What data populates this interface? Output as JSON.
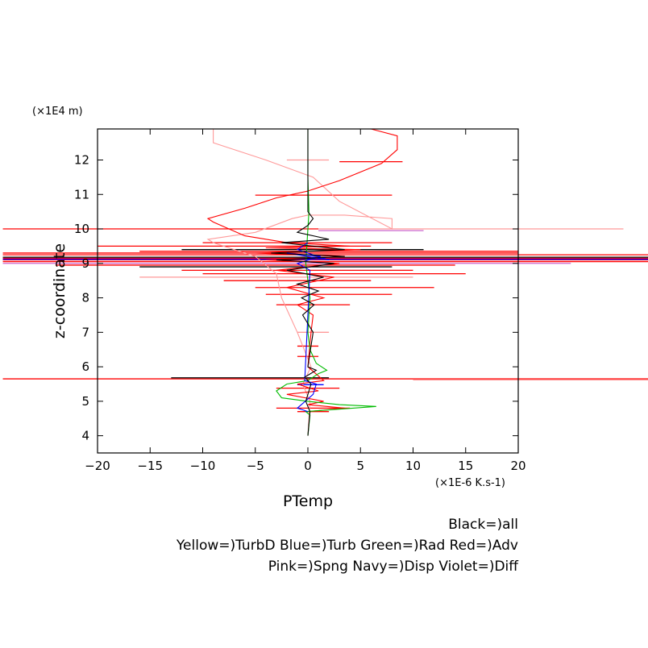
{
  "chart_data": {
    "type": "line",
    "xlabel": "PTemp",
    "ylabel": "z-coordinate",
    "x_unit": "(×1E-6 K.s-1)",
    "y_unit": "(×1E4 m)",
    "xlim": [
      -20,
      20
    ],
    "ylim": [
      3.5,
      12.9
    ],
    "x_ticks": [
      -20,
      -15,
      -10,
      -5,
      0,
      5,
      10,
      15,
      20
    ],
    "y_ticks": [
      4,
      5,
      6,
      7,
      8,
      9,
      10,
      11,
      12
    ],
    "grid": false,
    "legend_lines": [
      "Black=)all",
      "Yellow=)TurbD Blue=)Turb Green=)Rad Red=)Adv",
      "Pink=)Spng Navy=)Disp Violet=)Diff"
    ],
    "series": [
      {
        "color": "#ff9999",
        "x": [
          0,
          0.2,
          -0.5,
          0.3,
          -1.0,
          -2.5,
          -3.0,
          -5.0,
          -9.0,
          -9.5,
          -5.0,
          -1.5,
          0.0,
          3.5,
          8.0,
          8.0,
          3.0,
          0.5,
          -4.0,
          -9.0,
          -9.0,
          0.0
        ],
        "y": [
          4.0,
          5.0,
          5.5,
          6.0,
          7.0,
          8.0,
          8.7,
          9.2,
          9.6,
          9.7,
          9.9,
          10.3,
          10.4,
          10.4,
          10.3,
          10.0,
          10.8,
          11.5,
          12.0,
          12.5,
          12.9,
          12.9
        ]
      },
      {
        "color": "#ff0000",
        "x": [
          0,
          3.5,
          0,
          1.5,
          -2.0,
          1.0,
          -1.0,
          1.5,
          0,
          0.3,
          0.5,
          -1.0,
          1.5,
          -2.0,
          2.5,
          -3.0,
          3.0,
          -4.0,
          3.5,
          -5.0,
          5.0,
          -4.0,
          4.0,
          -2.0,
          -6.0,
          -9.0,
          -9.5,
          -6.0,
          -3.0,
          0.0,
          3.0,
          7.0,
          8.5,
          8.5,
          8.5,
          6.0,
          0.0
        ],
        "y": [
          4.7,
          4.8,
          4.9,
          5.0,
          5.2,
          5.3,
          5.5,
          5.6,
          6.0,
          7.0,
          7.5,
          7.8,
          8.0,
          8.3,
          8.6,
          8.8,
          9.0,
          9.1,
          9.2,
          9.3,
          9.4,
          9.45,
          9.5,
          9.6,
          9.8,
          10.2,
          10.3,
          10.6,
          10.9,
          11.1,
          11.4,
          11.9,
          12.3,
          12.5,
          12.7,
          12.9,
          12.9
        ]
      },
      {
        "color": "#00bb00",
        "x": [
          0,
          0.2,
          -0.2,
          6.5,
          3.0,
          0.0,
          -2.5,
          -3.0,
          -2.0,
          0.0,
          1.0,
          1.8,
          0.8,
          0.2,
          0.0,
          0.2,
          -0.2,
          0.1,
          0.0,
          0.0
        ],
        "y": [
          4.0,
          4.6,
          4.7,
          4.85,
          4.9,
          5.0,
          5.1,
          5.3,
          5.5,
          5.6,
          5.8,
          5.9,
          6.1,
          6.5,
          7.0,
          8.0,
          9.0,
          10.5,
          11.5,
          12.9
        ]
      },
      {
        "color": "#0000ff",
        "x": [
          0,
          -0.5,
          -1.0,
          0.5,
          0.8,
          -0.3,
          0.2,
          -1.0,
          1.2,
          -2.0,
          2.0,
          -1.0,
          0.0
        ],
        "y": [
          4.7,
          4.75,
          4.8,
          5.2,
          5.5,
          5.6,
          8.8,
          9.0,
          9.2,
          9.3,
          9.1,
          9.4,
          9.6
        ]
      },
      {
        "color": "#000000",
        "x": [
          0,
          0.2,
          -0.2,
          0.3,
          -0.3,
          0.8,
          0.0,
          0.5,
          -0.5,
          0.6,
          -0.6,
          1.0,
          -1.0,
          1.5,
          -2.0,
          2.5,
          -3.0,
          3.5,
          -3.5,
          3.5,
          -2.5,
          2.0,
          -1.0,
          0.0,
          0.5,
          0.0,
          0.0
        ],
        "y": [
          4.0,
          4.7,
          5.0,
          5.5,
          5.7,
          5.9,
          6.0,
          7.0,
          7.5,
          7.8,
          8.0,
          8.2,
          8.4,
          8.6,
          8.8,
          9.0,
          9.1,
          9.2,
          9.3,
          9.4,
          9.6,
          9.7,
          9.9,
          10.1,
          10.3,
          10.5,
          12.9
        ]
      }
    ],
    "spikes": [
      {
        "color": "#ff0000",
        "y": 10.0,
        "x1": -29,
        "x2": 1
      },
      {
        "color": "#ff0000",
        "y": 5.65,
        "x1": -29,
        "x2": 41
      },
      {
        "color": "#ff9999",
        "y": 5.62,
        "x1": 10,
        "x2": 41
      },
      {
        "color": "#ff9999",
        "y": 10.0,
        "x1": 1,
        "x2": 30
      },
      {
        "color": "#ff0000",
        "y": 9.15,
        "x1": -29,
        "x2": 41
      },
      {
        "color": "#ff0000",
        "y": 9.25,
        "x1": -29,
        "x2": 41
      },
      {
        "color": "#ff0000",
        "y": 9.1,
        "x1": -29,
        "x2": 41
      },
      {
        "color": "#0000ff",
        "y": 9.12,
        "x1": -29,
        "x2": 41
      },
      {
        "color": "#000000",
        "y": 9.18,
        "x1": -29,
        "x2": 33
      },
      {
        "color": "#ff0000",
        "y": 9.05,
        "x1": -29,
        "x2": 41
      },
      {
        "color": "#ff0000",
        "y": 9.3,
        "x1": -29,
        "x2": 20
      },
      {
        "color": "#ff0000",
        "y": 9.35,
        "x1": -16,
        "x2": 20
      },
      {
        "color": "#cc66cc",
        "y": 9.0,
        "x1": -29,
        "x2": 25
      },
      {
        "color": "#ff9999",
        "y": 8.6,
        "x1": -16,
        "x2": 10
      },
      {
        "color": "#ff0000",
        "y": 8.95,
        "x1": -24,
        "x2": 14
      },
      {
        "color": "#000000",
        "y": 8.9,
        "x1": -16,
        "x2": 8
      },
      {
        "color": "#000000",
        "y": 9.4,
        "x1": -12,
        "x2": 11
      },
      {
        "color": "#ff0000",
        "y": 9.5,
        "x1": -20,
        "x2": 6
      },
      {
        "color": "#ff0000",
        "y": 9.6,
        "x1": -10,
        "x2": 8
      },
      {
        "color": "#ff0000",
        "y": 8.5,
        "x1": -8,
        "x2": 6
      },
      {
        "color": "#ff0000",
        "y": 8.3,
        "x1": -5,
        "x2": 12
      },
      {
        "color": "#ff0000",
        "y": 8.1,
        "x1": -4,
        "x2": 8
      },
      {
        "color": "#ff0000",
        "y": 7.8,
        "x1": -3,
        "x2": 4
      },
      {
        "color": "#ff0000",
        "y": 8.7,
        "x1": -10,
        "x2": 15
      },
      {
        "color": "#ff0000",
        "y": 8.8,
        "x1": -12,
        "x2": 10
      },
      {
        "color": "#ff0000",
        "y": 10.98,
        "x1": -5,
        "x2": 8
      },
      {
        "color": "#ff0000",
        "y": 11.95,
        "x1": 3,
        "x2": 9
      },
      {
        "color": "#ff0000",
        "y": 5.38,
        "x1": -3,
        "x2": 3
      },
      {
        "color": "#ff0000",
        "y": 4.8,
        "x1": -3,
        "x2": 4
      },
      {
        "color": "#ff0000",
        "y": 4.7,
        "x1": -1,
        "x2": 2
      },
      {
        "color": "#000000",
        "y": 5.68,
        "x1": -13,
        "x2": 2
      },
      {
        "color": "#0000ff",
        "y": 5.48,
        "x1": -1,
        "x2": 1.5
      },
      {
        "color": "#cc66cc",
        "y": 9.95,
        "x1": 1,
        "x2": 11
      },
      {
        "color": "#ff9999",
        "y": 7.0,
        "x1": -1,
        "x2": 2
      },
      {
        "color": "#ff0000",
        "y": 6.6,
        "x1": -1,
        "x2": 1
      },
      {
        "color": "#ff0000",
        "y": 6.3,
        "x1": -1,
        "x2": 1
      },
      {
        "color": "#ff9999",
        "y": 12.0,
        "x1": -2,
        "x2": 2
      }
    ]
  }
}
